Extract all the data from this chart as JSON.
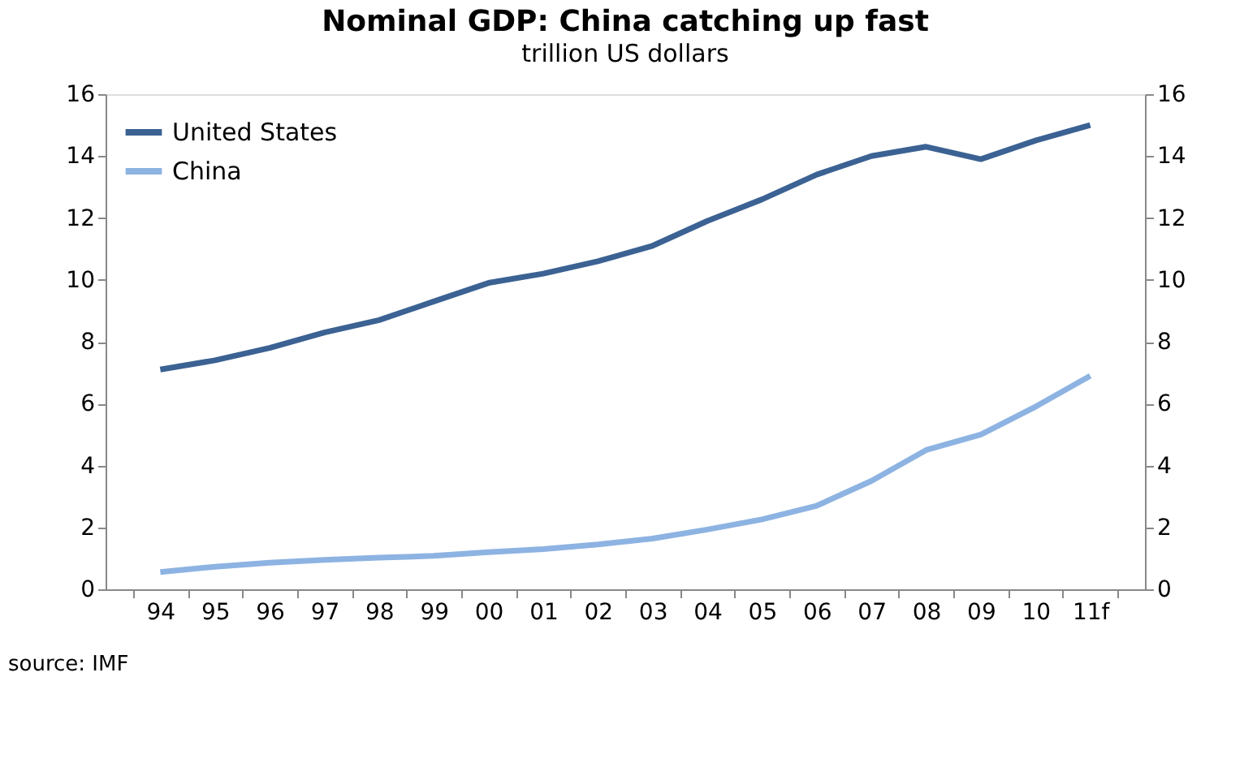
{
  "chart_data": {
    "type": "line",
    "title": "Nominal GDP: China catching up fast",
    "subtitle": "trillion US dollars",
    "categories": [
      "94",
      "95",
      "96",
      "97",
      "98",
      "99",
      "00",
      "01",
      "02",
      "03",
      "04",
      "05",
      "06",
      "07",
      "08",
      "09",
      "10",
      "11f"
    ],
    "series": [
      {
        "name": "United States",
        "color": "#3b6293",
        "values": [
          7.1,
          7.4,
          7.8,
          8.3,
          8.7,
          9.3,
          9.9,
          10.2,
          10.6,
          11.1,
          11.9,
          12.6,
          13.4,
          14.0,
          14.3,
          13.9,
          14.5,
          15.0
        ]
      },
      {
        "name": "China",
        "color": "#8db3e2",
        "values": [
          0.56,
          0.73,
          0.86,
          0.95,
          1.02,
          1.08,
          1.2,
          1.3,
          1.45,
          1.64,
          1.93,
          2.26,
          2.7,
          3.5,
          4.5,
          5.0,
          5.9,
          6.9
        ]
      }
    ],
    "ylim": [
      0,
      16
    ],
    "yticks": [
      0,
      2,
      4,
      6,
      8,
      10,
      12,
      14,
      16
    ],
    "y2lim": [
      0,
      16
    ],
    "y2ticks": [
      0,
      2,
      4,
      6,
      8,
      10,
      12,
      14,
      16
    ],
    "legend": "top left",
    "grid": false,
    "marker": "none",
    "line_style": "solid",
    "annotations": [
      "source: IMF"
    ]
  }
}
